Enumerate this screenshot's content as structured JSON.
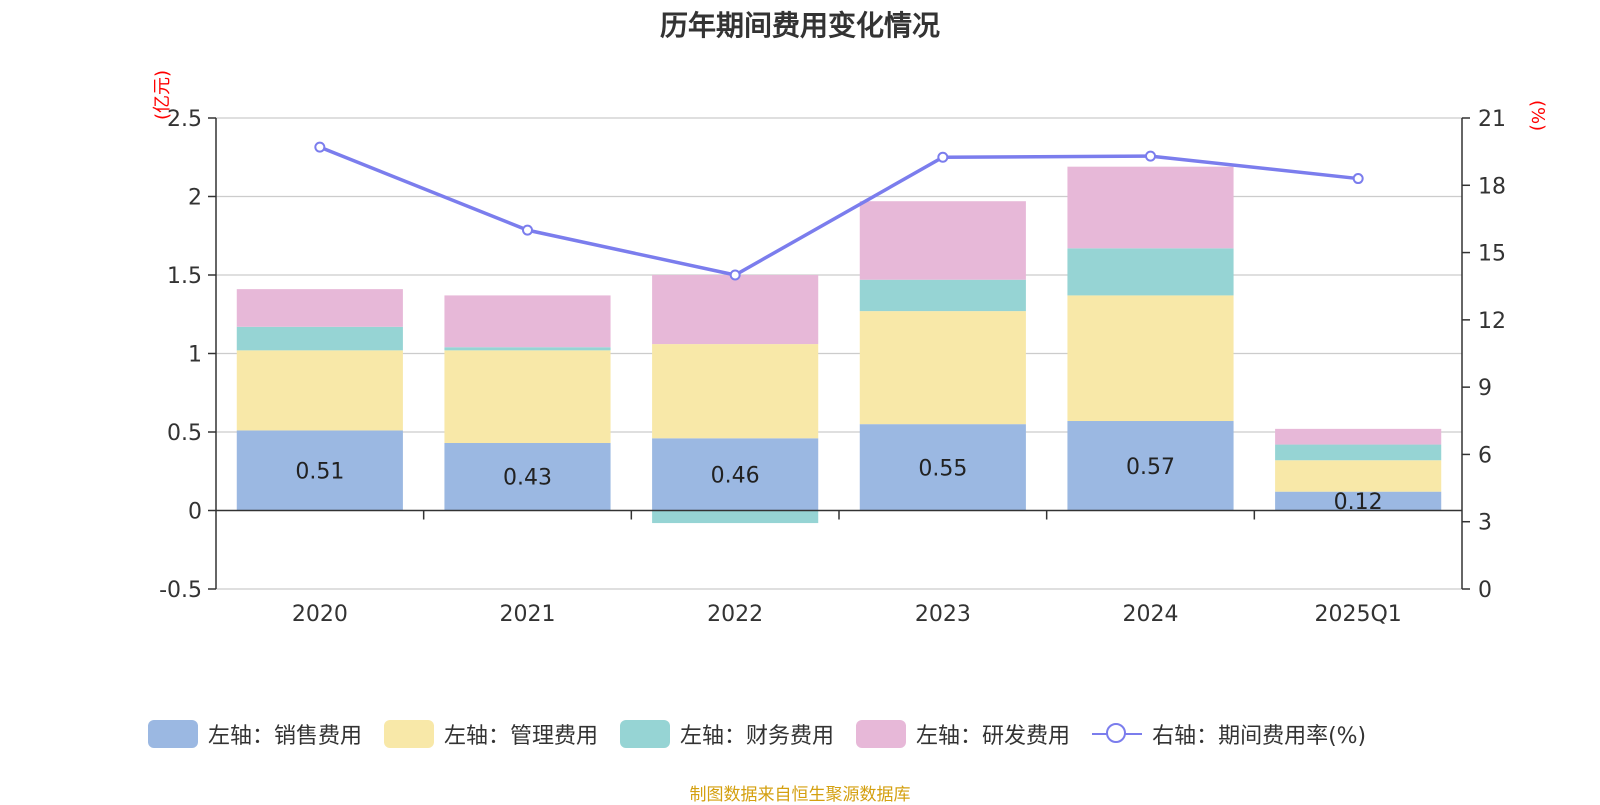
{
  "chart_data": {
    "type": "bar",
    "title": "历年期间费用变化情况",
    "left_unit": "(亿元)",
    "right_unit": "(%)",
    "categories": [
      "2020",
      "2021",
      "2022",
      "2023",
      "2024",
      "2025Q1"
    ],
    "ylim_left": [
      -0.5,
      2.5
    ],
    "yticks_left": [
      "-0.5",
      "0",
      "0.5",
      "1",
      "1.5",
      "2",
      "2.5"
    ],
    "ylim_right": [
      0,
      21
    ],
    "yticks_right": [
      "0",
      "3",
      "6",
      "9",
      "12",
      "15",
      "18",
      "21"
    ],
    "grid": true,
    "legend_position": "bottom",
    "series": [
      {
        "name": "左轴：销售费用",
        "color": "#9bb8e2",
        "values": [
          0.51,
          0.43,
          0.46,
          0.55,
          0.57,
          0.12
        ],
        "labels": [
          "0.51",
          "0.43",
          "0.46",
          "0.55",
          "0.57",
          "0.12"
        ]
      },
      {
        "name": "左轴：管理费用",
        "color": "#f8e8a8",
        "values": [
          0.51,
          0.59,
          0.6,
          0.72,
          0.8,
          0.2
        ]
      },
      {
        "name": "左轴：财务费用",
        "color": "#96d4d4",
        "values": [
          0.15,
          0.02,
          -0.08,
          0.2,
          0.3,
          0.1
        ]
      },
      {
        "name": "左轴：研发费用",
        "color": "#e7b8d8",
        "values": [
          0.24,
          0.33,
          0.44,
          0.5,
          0.52,
          0.1
        ]
      }
    ],
    "line_series": {
      "name": "右轴：期间费用率(%)",
      "color": "#7b7ded",
      "values": [
        19.7,
        16.0,
        14.0,
        19.25,
        19.3,
        18.3
      ]
    }
  },
  "source_note": "制图数据来自恒生聚源数据库"
}
